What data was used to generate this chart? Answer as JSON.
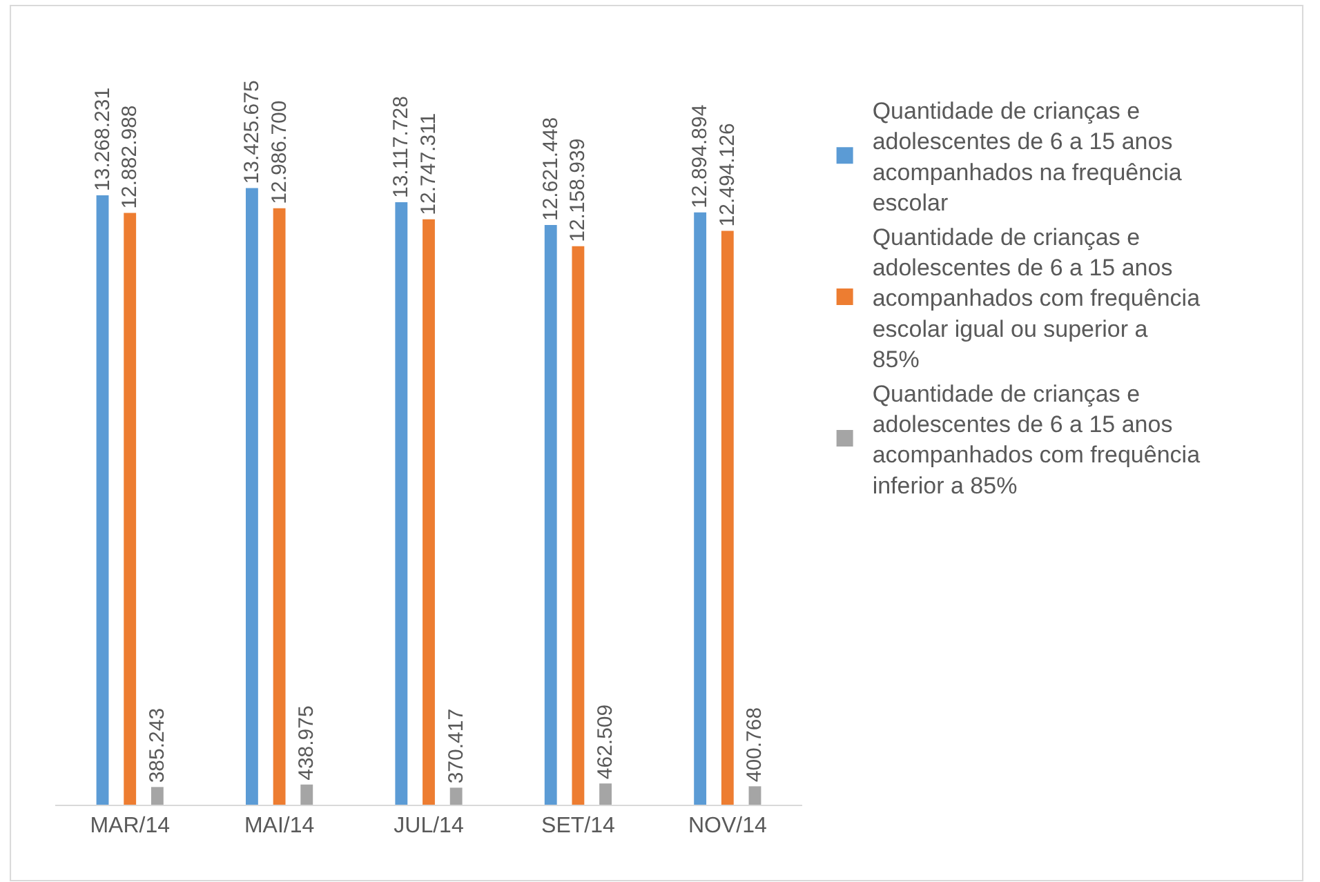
{
  "chart_data": {
    "type": "bar",
    "categories": [
      "MAR/14",
      "MAI/14",
      "JUL/14",
      "SET/14",
      "NOV/14"
    ],
    "series": [
      {
        "name": "Quantidade de crianças e adolescentes de 6 a 15 anos acompanhados na frequência escolar",
        "color": "#5b9bd5",
        "values": [
          13268231,
          13425675,
          13117728,
          12621448,
          12894894
        ],
        "value_labels": [
          "13.268.231",
          "13.425.675",
          "13.117.728",
          "12.621.448",
          "12.894.894"
        ]
      },
      {
        "name": "Quantidade de crianças e adolescentes de 6 a 15 anos acompanhados com frequência escolar igual ou superior a 85%",
        "color": "#ed7d31",
        "values": [
          12882988,
          12986700,
          12747311,
          12158939,
          12494126
        ],
        "value_labels": [
          "12.882.988",
          "12.986.700",
          "12.747.311",
          "12.158.939",
          "12.494.126"
        ]
      },
      {
        "name": "Quantidade de crianças e adolescentes de 6 a 15 anos acompanhados com frequência inferior a 85%",
        "color": "#a5a5a5",
        "values": [
          385243,
          438975,
          370417,
          462509,
          400768
        ],
        "value_labels": [
          "385.243",
          "438.975",
          "370.417",
          "462.509",
          "400.768"
        ]
      }
    ],
    "ylim": [
      0,
      17400000
    ],
    "tick_labels": "x",
    "legend": "right"
  }
}
